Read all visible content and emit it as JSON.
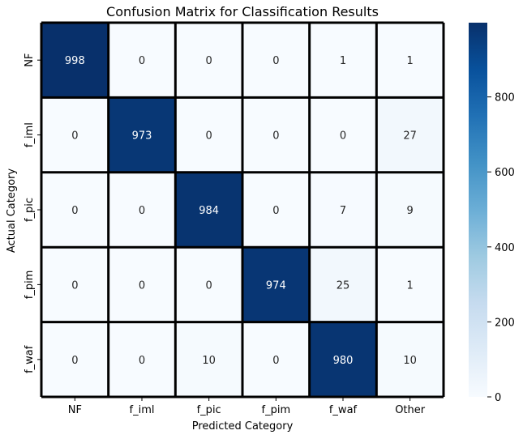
{
  "chart_data": {
    "type": "heatmap",
    "title": "Confusion Matrix for Classification Results",
    "xlabel": "Predicted Category",
    "ylabel": "Actual Category",
    "x_categories": [
      "NF",
      "f_iml",
      "f_pic",
      "f_pim",
      "f_waf",
      "Other"
    ],
    "y_categories": [
      "NF",
      "f_iml",
      "f_pic",
      "f_pim",
      "f_waf"
    ],
    "values": [
      [
        998,
        0,
        0,
        0,
        1,
        1
      ],
      [
        0,
        973,
        0,
        0,
        0,
        27
      ],
      [
        0,
        0,
        984,
        0,
        7,
        9
      ],
      [
        0,
        0,
        0,
        974,
        25,
        1
      ],
      [
        0,
        0,
        10,
        0,
        980,
        10
      ]
    ],
    "colorbar": {
      "min": 0,
      "max": 998,
      "ticks": [
        0,
        200,
        400,
        600,
        800
      ],
      "colormap": "Blues"
    },
    "colors": {
      "low": "#f7fbff",
      "high": "#08306b",
      "grid": "#000000"
    },
    "grid": true,
    "legend": "colorbar-right"
  }
}
